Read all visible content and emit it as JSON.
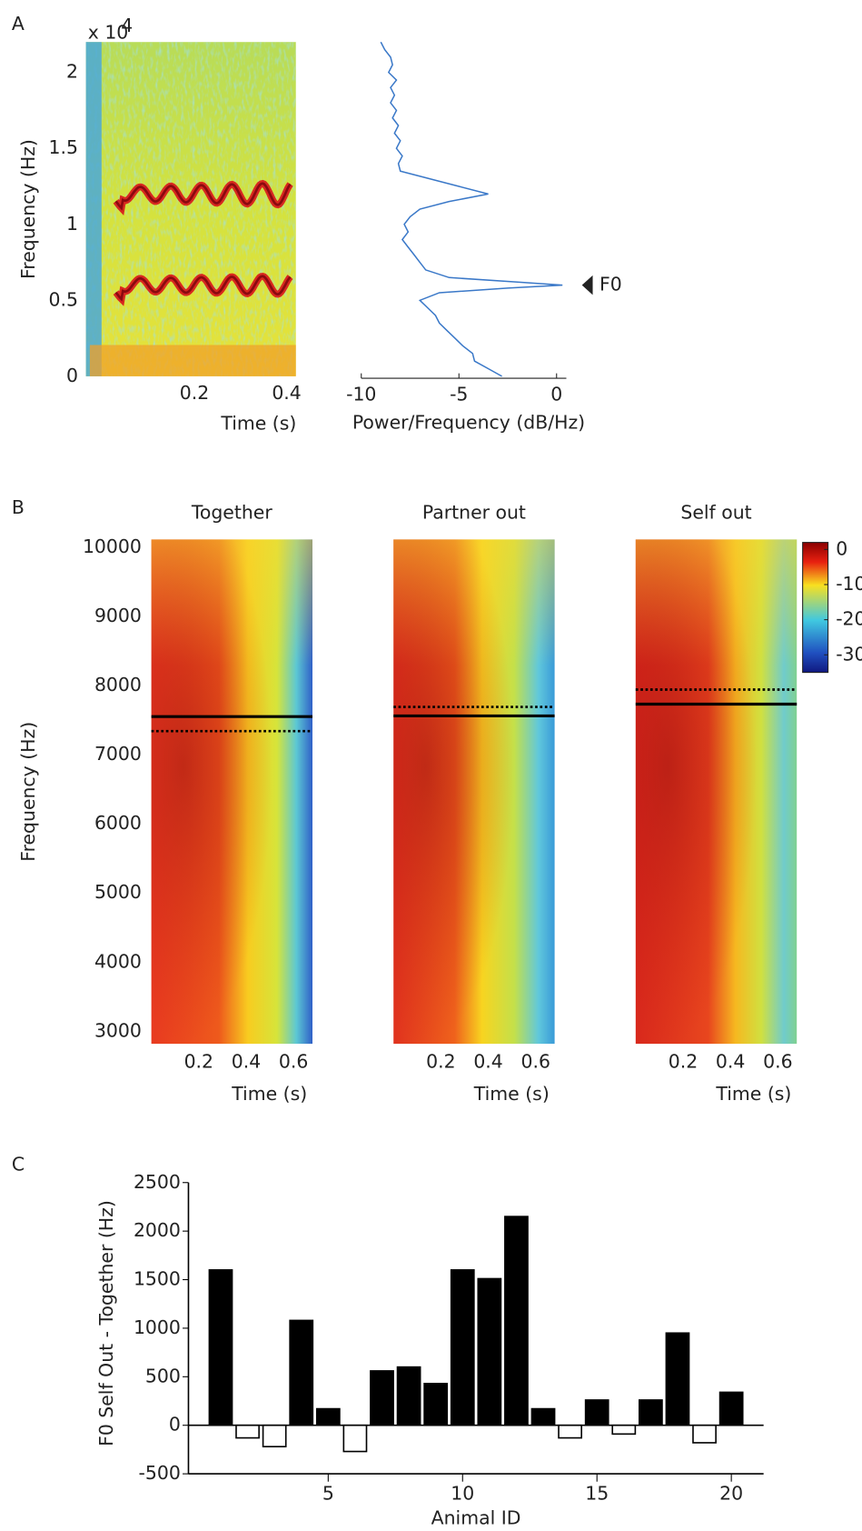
{
  "chart_data": [
    {
      "type": "spectrogram",
      "panel": "A",
      "ylabel": "Frequency (Hz)",
      "xlabel": "Time (s)",
      "y_scale_label": "x 10",
      "y_scale_exponent": "4",
      "xlim": [
        -0.035,
        0.42
      ],
      "xticks": [
        0.2,
        0.4
      ],
      "ylim": [
        0,
        2.2
      ],
      "yticks": [
        0,
        0.5,
        1,
        1.5,
        2
      ]
    },
    {
      "type": "line",
      "xlabel": "Power/Frequency (dB/Hz)",
      "color": "#3a78c8",
      "y": [
        0,
        0.05,
        0.1,
        0.15,
        0.2,
        0.25,
        0.3,
        0.35,
        0.4,
        0.45,
        0.5,
        0.55,
        0.58,
        0.6,
        0.62,
        0.65,
        0.7,
        0.75,
        0.8,
        0.85,
        0.9,
        0.95,
        1.0,
        1.05,
        1.1,
        1.15,
        1.2,
        1.25,
        1.3,
        1.35,
        1.4,
        1.45,
        1.5,
        1.55,
        1.6,
        1.65,
        1.7,
        1.75,
        1.8,
        1.85,
        1.9,
        1.95,
        2.0,
        2.05,
        2.1,
        2.15,
        2.2
      ],
      "values": [
        -2.8,
        -3.5,
        -4.2,
        -4.3,
        -4.8,
        -5.2,
        -5.6,
        -6.0,
        -6.2,
        -6.6,
        -7.0,
        -6.0,
        -2.5,
        0.3,
        -2.0,
        -5.5,
        -6.7,
        -7.0,
        -7.3,
        -7.6,
        -7.9,
        -7.6,
        -7.8,
        -7.5,
        -7.0,
        -5.5,
        -3.5,
        -5.0,
        -6.5,
        -8.0,
        -8.1,
        -7.9,
        -8.2,
        -8.0,
        -8.3,
        -8.1,
        -8.4,
        -8.2,
        -8.5,
        -8.3,
        -8.5,
        -8.2,
        -8.6,
        -8.4,
        -8.5,
        -8.8,
        -9.0
      ],
      "xlim": [
        -10,
        0.5
      ],
      "xticks": [
        -10,
        -5,
        0
      ],
      "ylim": [
        0,
        2.2
      ],
      "annotation": {
        "text": "F0",
        "y": 0.6
      }
    },
    {
      "type": "heatmap",
      "panel": "B",
      "title": "Together",
      "ylabel": "Frequency (Hz)",
      "xlabel": "Time (s)",
      "xlim": [
        0,
        0.68
      ],
      "xticks": [
        0.2,
        0.4,
        0.6
      ],
      "ylim": [
        2820,
        10110
      ],
      "yticks": [
        3000,
        4000,
        5000,
        6000,
        7000,
        8000,
        9000,
        10000
      ],
      "lines": [
        {
          "value": 7550,
          "style": "solid"
        },
        {
          "value": 7340,
          "style": "dotted"
        }
      ]
    },
    {
      "type": "heatmap",
      "title": "Partner out",
      "xlabel": "Time (s)",
      "xlim": [
        0,
        0.68
      ],
      "xticks": [
        0.2,
        0.4,
        0.6
      ],
      "ylim": [
        2820,
        10110
      ],
      "lines": [
        {
          "value": 7560,
          "style": "solid"
        },
        {
          "value": 7690,
          "style": "dotted"
        }
      ]
    },
    {
      "type": "heatmap",
      "title": "Self out",
      "xlabel": "Time (s)",
      "xlim": [
        0,
        0.68
      ],
      "xticks": [
        0.2,
        0.4,
        0.6
      ],
      "ylim": [
        2820,
        10110
      ],
      "lines": [
        {
          "value": 7730,
          "style": "solid"
        },
        {
          "value": 7940,
          "style": "dotted"
        }
      ],
      "colorbar": {
        "lim": [
          -35,
          2
        ],
        "ticks": [
          0,
          -10,
          -20,
          -30
        ]
      }
    },
    {
      "type": "bar",
      "panel": "C",
      "xlabel": "Animal ID",
      "ylabel": "F0 Self Out - Together (Hz)",
      "x": [
        1,
        2,
        3,
        4,
        5,
        6,
        7,
        8,
        9,
        10,
        11,
        12,
        13,
        14,
        15,
        16,
        17,
        18,
        19,
        20
      ],
      "values": [
        1600,
        -130,
        -220,
        1080,
        170,
        -270,
        560,
        600,
        430,
        1600,
        1510,
        2150,
        170,
        -130,
        260,
        -90,
        260,
        950,
        -180,
        340
      ],
      "positive_color": "#000000",
      "negative_color": "#ffffff",
      "xlim": [
        -0.2,
        21.2
      ],
      "xticks": [
        5,
        10,
        15,
        20
      ],
      "ylim": [
        -500,
        2500
      ],
      "yticks": [
        -500,
        0,
        500,
        1000,
        1500,
        2000,
        2500
      ]
    }
  ]
}
